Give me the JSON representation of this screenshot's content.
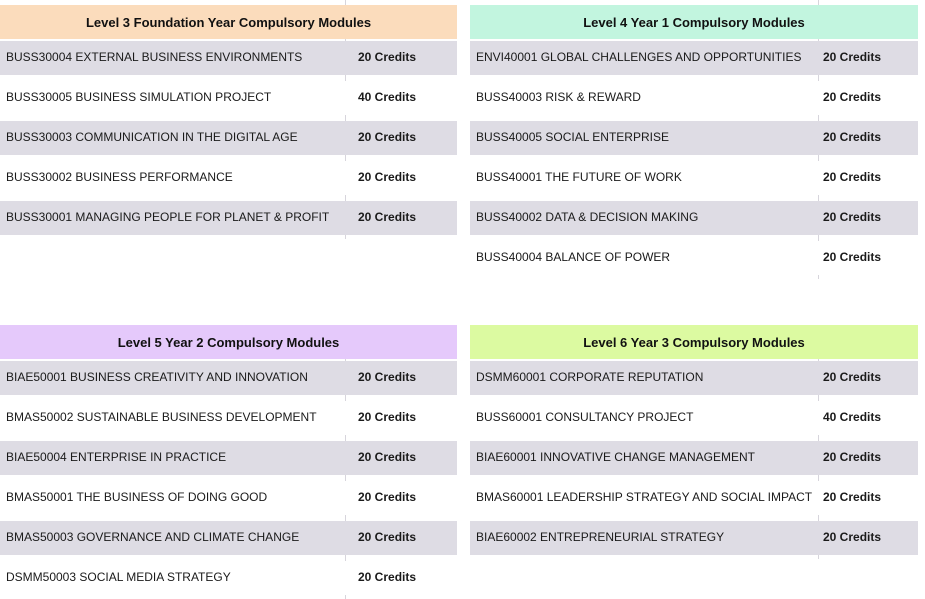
{
  "colors": {
    "level3_header": "#fbdcbc",
    "level4_header": "#c2f5df",
    "level5_header": "#e5c9fb",
    "level6_header": "#dcfaa1",
    "row_shaded": "#dedce4",
    "row_plain": "#ffffff",
    "column_divider": "#d7d5dc"
  },
  "tables": [
    {
      "title": "Level 3 Foundation Year Compulsory Modules",
      "rows": [
        {
          "module": "BUSS30004 EXTERNAL BUSINESS ENVIRONMENTS",
          "credits": "20 Credits"
        },
        {
          "module": "BUSS30005 BUSINESS SIMULATION PROJECT",
          "credits": "40 Credits"
        },
        {
          "module": "BUSS30003 COMMUNICATION IN THE DIGITAL AGE",
          "credits": "20 Credits"
        },
        {
          "module": "BUSS30002 BUSINESS PERFORMANCE",
          "credits": "20 Credits"
        },
        {
          "module": "BUSS30001 MANAGING PEOPLE FOR PLANET & PROFIT",
          "credits": "20 Credits"
        }
      ]
    },
    {
      "title": "Level 4 Year 1 Compulsory Modules",
      "rows": [
        {
          "module": "ENVI40001 GLOBAL CHALLENGES AND OPPORTUNITIES",
          "credits": "20 Credits"
        },
        {
          "module": "BUSS40003 RISK & REWARD",
          "credits": "20 Credits"
        },
        {
          "module": "BUSS40005 SOCIAL ENTERPRISE",
          "credits": "20 Credits"
        },
        {
          "module": "BUSS40001 THE FUTURE OF WORK",
          "credits": "20 Credits"
        },
        {
          "module": "BUSS40002 DATA & DECISION MAKING",
          "credits": "20 Credits"
        },
        {
          "module": "BUSS40004 BALANCE OF POWER",
          "credits": "20 Credits"
        }
      ]
    },
    {
      "title": "Level 5 Year 2 Compulsory Modules",
      "rows": [
        {
          "module": "BIAE50001 BUSINESS CREATIVITY AND INNOVATION",
          "credits": "20 Credits"
        },
        {
          "module": "BMAS50002 SUSTAINABLE BUSINESS DEVELOPMENT",
          "credits": "20 Credits"
        },
        {
          "module": "BIAE50004 ENTERPRISE IN PRACTICE",
          "credits": "20 Credits"
        },
        {
          "module": "BMAS50001 THE BUSINESS OF DOING GOOD",
          "credits": "20 Credits"
        },
        {
          "module": "BMAS50003 GOVERNANCE AND CLIMATE CHANGE",
          "credits": "20 Credits"
        },
        {
          "module": "DSMM50003 SOCIAL MEDIA STRATEGY",
          "credits": "20 Credits"
        }
      ]
    },
    {
      "title": "Level 6 Year 3 Compulsory Modules",
      "rows": [
        {
          "module": "DSMM60001 CORPORATE REPUTATION",
          "credits": "20 Credits"
        },
        {
          "module": "BUSS60001 CONSULTANCY PROJECT",
          "credits": "40 Credits"
        },
        {
          "module": "BIAE60001 INNOVATIVE CHANGE MANAGEMENT",
          "credits": "20 Credits"
        },
        {
          "module": "BMAS60001 LEADERSHIP STRATEGY AND SOCIAL IMPACT",
          "credits": "20 Credits"
        },
        {
          "module": "BIAE60002 ENTREPRENEURIAL STRATEGY",
          "credits": "20 Credits"
        }
      ]
    }
  ]
}
